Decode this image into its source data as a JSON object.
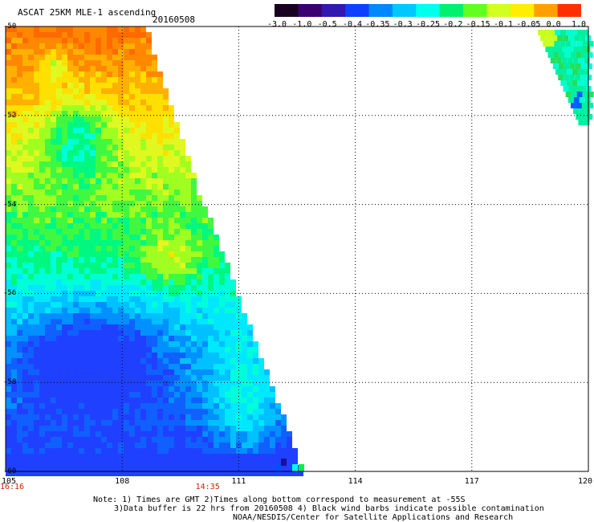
{
  "header": {
    "title": "ASCAT 25KM MLE-1 ascending",
    "date": "20160508"
  },
  "colorbar": {
    "labels": [
      "-3.0",
      "-1.0",
      "-0.5",
      "-0.4",
      "-0.35",
      "-0.3",
      "-0.25",
      "-0.2",
      "-0.15",
      "-0.1",
      "-0.05",
      "0.0",
      "1.0"
    ],
    "colors": [
      "#1a0020",
      "#3a0070",
      "#3018b0",
      "#1040ff",
      "#0088ff",
      "#00c8ff",
      "#00ffee",
      "#00f070",
      "#60ff20",
      "#d0ff20",
      "#ffee00",
      "#ffa000",
      "#ff3000"
    ]
  },
  "map": {
    "lon_ticks": [
      "105",
      "108",
      "111",
      "114",
      "117",
      "120"
    ],
    "lat_ticks": [
      "-50",
      "-52",
      "-54",
      "-56",
      "-58",
      "-60"
    ],
    "time_labels": [
      {
        "text": "16:16",
        "lon": 105
      },
      {
        "text": "14:35",
        "lon": 110.2
      }
    ]
  },
  "notes": {
    "line1": "Note: 1) Times are GMT 2)Times along bottom correspond to measurement at -55S",
    "line2": "3)Data buffer is 22 hrs from 20160508 4) Black wind barbs indicate possible contamination",
    "line3": "NOAA/NESDIS/Center for Satellite Applications and Research"
  }
}
